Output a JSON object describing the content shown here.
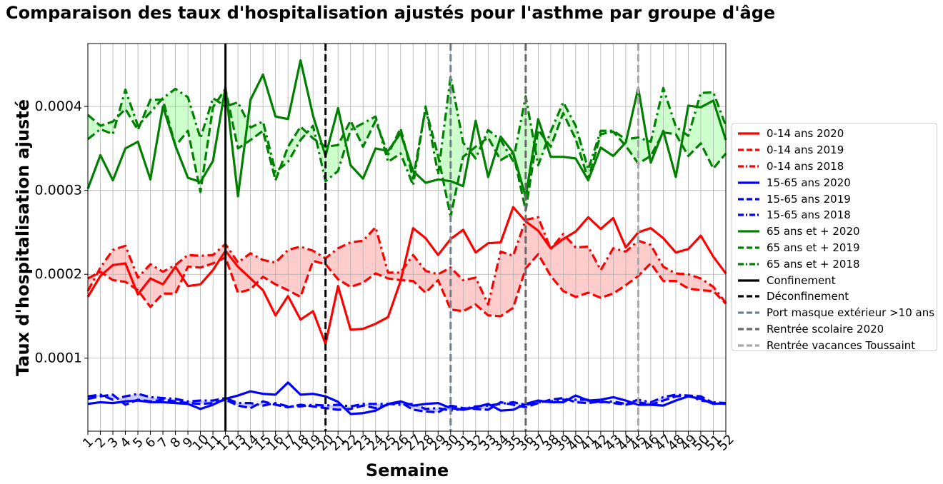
{
  "chart_data": {
    "type": "line",
    "title": "Comparaison des taux d'hospitalisation ajustés pour l'asthme par groupe d'âge",
    "xlabel": "Semaine",
    "ylabel": "Taux d'hospitalisation ajusté",
    "ylim": [
      1.3e-05,
      0.000475
    ],
    "xlim": [
      1,
      52
    ],
    "yticks": [
      0.0001,
      0.0002,
      0.0003,
      0.0004
    ],
    "ytick_labels": [
      "0.0001",
      "0.0002",
      "0.0003",
      "0.0004"
    ],
    "x": [
      1,
      2,
      3,
      4,
      5,
      6,
      7,
      8,
      9,
      10,
      11,
      12,
      13,
      14,
      15,
      16,
      17,
      18,
      19,
      20,
      21,
      22,
      23,
      24,
      25,
      26,
      27,
      28,
      29,
      30,
      31,
      32,
      33,
      34,
      35,
      36,
      37,
      38,
      39,
      40,
      41,
      42,
      43,
      44,
      45,
      46,
      47,
      48,
      49,
      50,
      51,
      52
    ],
    "grid": true,
    "legend_position": "center-right outside",
    "series": [
      {
        "name": "0-14 ans 2020",
        "color": "#ff0000",
        "style": "solid",
        "values": [
          0.000173,
          0.000198,
          0.000211,
          0.000213,
          0.000176,
          0.000195,
          0.000188,
          0.000209,
          0.000186,
          0.000188,
          0.000205,
          0.000228,
          0.000209,
          0.000195,
          0.000181,
          0.000151,
          0.000174,
          0.000146,
          0.000156,
          0.000117,
          0.000186,
          0.000134,
          0.000135,
          0.000141,
          0.000149,
          0.000192,
          0.000255,
          0.000243,
          0.000223,
          0.000242,
          0.000253,
          0.000226,
          0.000237,
          0.000238,
          0.00028,
          0.000263,
          0.000252,
          0.000231,
          0.000242,
          0.000251,
          0.000268,
          0.000254,
          0.000267,
          0.000232,
          0.00025,
          0.000255,
          0.000243,
          0.000226,
          0.00023,
          0.000246,
          0.000221,
          0.000201
        ]
      },
      {
        "name": "0-14 ans 2019",
        "color": "#ff0000",
        "style": "dashed",
        "values": [
          0.000195,
          0.000203,
          0.000193,
          0.000191,
          0.000181,
          0.000161,
          0.000177,
          0.000177,
          0.000209,
          0.000208,
          0.000213,
          0.00022,
          0.000178,
          0.000182,
          0.000197,
          0.000188,
          0.000181,
          0.000173,
          0.000216,
          0.000212,
          0.000194,
          0.000185,
          0.00019,
          0.000201,
          0.000195,
          0.000193,
          0.000192,
          0.000178,
          0.000193,
          0.000158,
          0.000156,
          0.000164,
          0.000151,
          0.00015,
          0.00016,
          0.000207,
          0.000224,
          0.000198,
          0.00018,
          0.000173,
          0.000178,
          0.000172,
          0.000177,
          0.000187,
          0.000198,
          0.000213,
          0.000192,
          0.000192,
          0.000183,
          0.000181,
          0.00018,
          0.000165
        ]
      },
      {
        "name": "0-14 ans 2018",
        "color": "#ff0000",
        "style": "dashdot",
        "values": [
          0.00018,
          0.000208,
          0.000229,
          0.000234,
          0.000196,
          0.000212,
          0.000203,
          0.000211,
          0.000223,
          0.000222,
          0.000223,
          0.000236,
          0.000214,
          0.000225,
          0.000217,
          0.000214,
          0.000229,
          0.000233,
          0.000228,
          0.000219,
          0.000231,
          0.000238,
          0.00024,
          0.000256,
          0.000202,
          0.000202,
          0.000223,
          0.000204,
          0.0002,
          0.000208,
          0.000193,
          0.000196,
          0.000164,
          0.000227,
          0.000222,
          0.000265,
          0.000268,
          0.00023,
          0.000248,
          0.000232,
          0.000233,
          0.000205,
          0.000231,
          0.000227,
          0.00024,
          0.000235,
          0.000209,
          0.000201,
          0.0002,
          0.000195,
          0.000185,
          0.000166
        ]
      },
      {
        "name": "15-65 ans 2020",
        "color": "#0000ff",
        "style": "solid",
        "values": [
          4.55e-05,
          4.75e-05,
          4.65e-05,
          4.85e-05,
          4.95e-05,
          4.75e-05,
          4.75e-05,
          4.65e-05,
          4.55e-05,
          3.95e-05,
          4.45e-05,
          5.15e-05,
          5.55e-05,
          6.05e-05,
          5.75e-05,
          5.65e-05,
          7.1e-05,
          5.65e-05,
          5.75e-05,
          5.45e-05,
          4.8e-05,
          3.35e-05,
          3.45e-05,
          3.75e-05,
          4.55e-05,
          4.85e-05,
          4.35e-05,
          4.55e-05,
          4.65e-05,
          4.05e-05,
          3.85e-05,
          4.15e-05,
          4.55e-05,
          3.75e-05,
          3.85e-05,
          4.55e-05,
          4.95e-05,
          4.75e-05,
          4.75e-05,
          5.55e-05,
          4.95e-05,
          5.05e-05,
          5.35e-05,
          4.95e-05,
          4.45e-05,
          4.45e-05,
          4.35e-05,
          4.95e-05,
          5.45e-05,
          5.15e-05,
          4.55e-05,
          4.65e-05
        ]
      },
      {
        "name": "15-65 ans 2019",
        "color": "#0000ff",
        "style": "dashed",
        "values": [
          5.15e-05,
          5.45e-05,
          5.65e-05,
          4.45e-05,
          5.05e-05,
          4.85e-05,
          5.05e-05,
          4.85e-05,
          4.65e-05,
          4.55e-05,
          4.65e-05,
          5.05e-05,
          4.35e-05,
          4.05e-05,
          4.85e-05,
          4.45e-05,
          4.15e-05,
          4.45e-05,
          4.25e-05,
          4.05e-05,
          3.85e-05,
          3.95e-05,
          4.35e-05,
          4.05e-05,
          4.45e-05,
          4.75e-05,
          3.85e-05,
          3.65e-05,
          3.55e-05,
          4.35e-05,
          4.05e-05,
          3.95e-05,
          3.85e-05,
          4.75e-05,
          4.45e-05,
          4.15e-05,
          4.65e-05,
          5.05e-05,
          5.25e-05,
          4.75e-05,
          4.65e-05,
          4.85e-05,
          4.65e-05,
          4.45e-05,
          4.75e-05,
          4.45e-05,
          4.95e-05,
          5.45e-05,
          5.55e-05,
          5.45e-05,
          4.65e-05,
          4.55e-05
        ]
      },
      {
        "name": "15-65 ans 2018",
        "color": "#0000ff",
        "style": "dashdot",
        "values": [
          5.45e-05,
          5.65e-05,
          5.05e-05,
          5.45e-05,
          5.75e-05,
          5.35e-05,
          5.25e-05,
          5.15e-05,
          4.85e-05,
          4.95e-05,
          4.95e-05,
          5.25e-05,
          4.65e-05,
          4.65e-05,
          4.35e-05,
          4.65e-05,
          4.25e-05,
          4.25e-05,
          4.45e-05,
          4.35e-05,
          4.45e-05,
          4.25e-05,
          4.55e-05,
          4.55e-05,
          4.55e-05,
          4.45e-05,
          4.55e-05,
          3.95e-05,
          4.05e-05,
          3.75e-05,
          3.95e-05,
          4.25e-05,
          4.35e-05,
          4.55e-05,
          4.75e-05,
          4.45e-05,
          4.75e-05,
          4.85e-05,
          5.05e-05,
          5.05e-05,
          5.05e-05,
          4.75e-05,
          4.85e-05,
          4.55e-05,
          5.05e-05,
          4.75e-05,
          5.35e-05,
          5.65e-05,
          5.55e-05,
          4.95e-05,
          4.75e-05,
          4.65e-05
        ]
      },
      {
        "name": "65 ans et + 2020",
        "color": "#008000",
        "style": "solid",
        "values": [
          0.000302,
          0.000342,
          0.000312,
          0.00035,
          0.000358,
          0.000313,
          0.0004,
          0.000353,
          0.000315,
          0.00031,
          0.000335,
          0.000423,
          0.000293,
          0.000408,
          0.000438,
          0.000388,
          0.000385,
          0.000455,
          0.000389,
          0.000341,
          0.000398,
          0.00033,
          0.000314,
          0.00035,
          0.000347,
          0.000368,
          0.000323,
          0.000309,
          0.000313,
          0.000311,
          0.000305,
          0.000383,
          0.000316,
          0.000364,
          0.000345,
          0.000292,
          0.000385,
          0.00034,
          0.00034,
          0.000338,
          0.000312,
          0.000351,
          0.000341,
          0.000357,
          0.000422,
          0.000333,
          0.000371,
          0.000316,
          0.000401,
          0.000399,
          0.000407,
          0.00036
        ]
      },
      {
        "name": "65 ans et + 2019",
        "color": "#008000",
        "style": "dashed",
        "values": [
          0.00039,
          0.000377,
          0.000382,
          0.000397,
          0.000372,
          0.000408,
          0.000408,
          0.000353,
          0.000371,
          0.000298,
          0.000399,
          0.000421,
          0.00035,
          0.00036,
          0.000371,
          0.000312,
          0.000352,
          0.000376,
          0.000362,
          0.000352,
          0.000354,
          0.000383,
          0.000352,
          0.000383,
          0.000343,
          0.000374,
          0.000314,
          0.000398,
          0.000341,
          0.000269,
          0.00034,
          0.000352,
          0.000363,
          0.000336,
          0.000345,
          0.000276,
          0.000372,
          0.000352,
          0.000392,
          0.000361,
          0.000313,
          0.000367,
          0.00037,
          0.000353,
          0.000332,
          0.000341,
          0.000369,
          0.000367,
          0.000341,
          0.000356,
          0.000326,
          0.000344
        ]
      },
      {
        "name": "65 ans et + 2018",
        "color": "#008000",
        "style": "dashdot",
        "values": [
          0.000361,
          0.000373,
          0.000367,
          0.00042,
          0.000377,
          0.000393,
          0.00041,
          0.000421,
          0.000411,
          0.000362,
          0.00041,
          0.0004,
          0.000405,
          0.000375,
          0.000382,
          0.000322,
          0.000334,
          0.00036,
          0.000377,
          0.000311,
          0.000323,
          0.000372,
          0.00038,
          0.000388,
          0.000334,
          0.000344,
          0.000306,
          0.0004,
          0.000319,
          0.000436,
          0.000357,
          0.000338,
          0.000372,
          0.00036,
          0.000335,
          0.000412,
          0.00033,
          0.00037,
          0.000405,
          0.000377,
          0.000325,
          0.000371,
          0.000371,
          0.000361,
          0.000363,
          0.000358,
          0.000422,
          0.000376,
          0.000365,
          0.000416,
          0.000417,
          0.000377
        ]
      }
    ],
    "vlines": [
      {
        "name": "Confinement",
        "x": 12,
        "color": "#000000",
        "style": "solid"
      },
      {
        "name": "Déconfinement",
        "x": 20,
        "color": "#000000",
        "style": "dashed"
      },
      {
        "name": "Port masque extérieur >10 ans",
        "x": 30,
        "color": "#708090",
        "style": "dashed"
      },
      {
        "name": "Rentrée scolaire 2020",
        "x": 36,
        "color": "#696969",
        "style": "dashed"
      },
      {
        "name": "Rentrée vacances Toussaint",
        "x": 45,
        "color": "#a9a9a9",
        "style": "dashed"
      }
    ],
    "fill_between": [
      {
        "between": [
          "0-14 ans 2019",
          "0-14 ans 2018"
        ],
        "color": "#ffcccc"
      },
      {
        "between": [
          "15-65 ans 2019",
          "15-65 ans 2018"
        ],
        "color": "#ccccff"
      },
      {
        "between": [
          "65 ans et + 2019",
          "65 ans et + 2018"
        ],
        "color": "#ccffcc"
      }
    ]
  }
}
